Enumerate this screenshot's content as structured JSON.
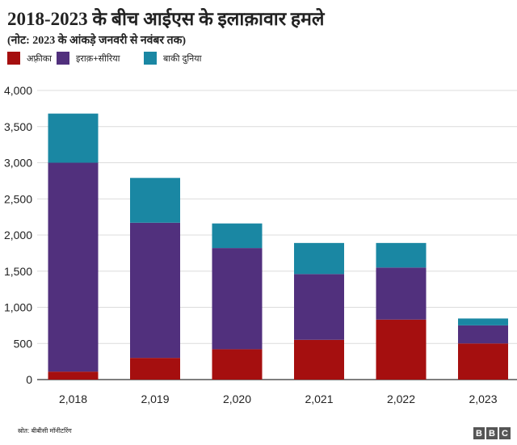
{
  "header": {
    "title": "2018-2023 के बीच आईएस के इलाक़ावार हमले",
    "subtitle": "(नोट: 2023 के आंकड़े जनवरी से नवंबर तक)"
  },
  "footer": {
    "source": "स्रोत: बीबीसी मॉनीटरिंग",
    "brand": [
      "B",
      "B",
      "C"
    ]
  },
  "colors": {
    "africa": "#a50f0f",
    "iraq_syria": "#51307d",
    "rest_of_world": "#1a87a3"
  },
  "chart_data": {
    "type": "bar",
    "stacked": true,
    "categories": [
      "2,018",
      "2,019",
      "2,020",
      "2,021",
      "2,022",
      "2,023"
    ],
    "series": [
      {
        "name": "अफ़्रीका",
        "key": "africa",
        "values": [
          110,
          300,
          420,
          550,
          830,
          500
        ]
      },
      {
        "name": "इराक़+सीरिया",
        "key": "iraq_syria",
        "values": [
          2890,
          1870,
          1400,
          910,
          720,
          250
        ]
      },
      {
        "name": "बाकी दुनिया",
        "key": "rest_of_world",
        "values": [
          680,
          620,
          340,
          430,
          340,
          95
        ]
      }
    ],
    "ylim": [
      0,
      4000
    ],
    "yticks": [
      0,
      500,
      1000,
      1500,
      2000,
      2500,
      3000,
      3500,
      4000
    ],
    "ytick_labels": [
      "0",
      "500",
      "1,000",
      "1,500",
      "2,000",
      "2,500",
      "3,000",
      "3,500",
      "4,000"
    ],
    "grid": true,
    "legend_position": "top-left"
  }
}
